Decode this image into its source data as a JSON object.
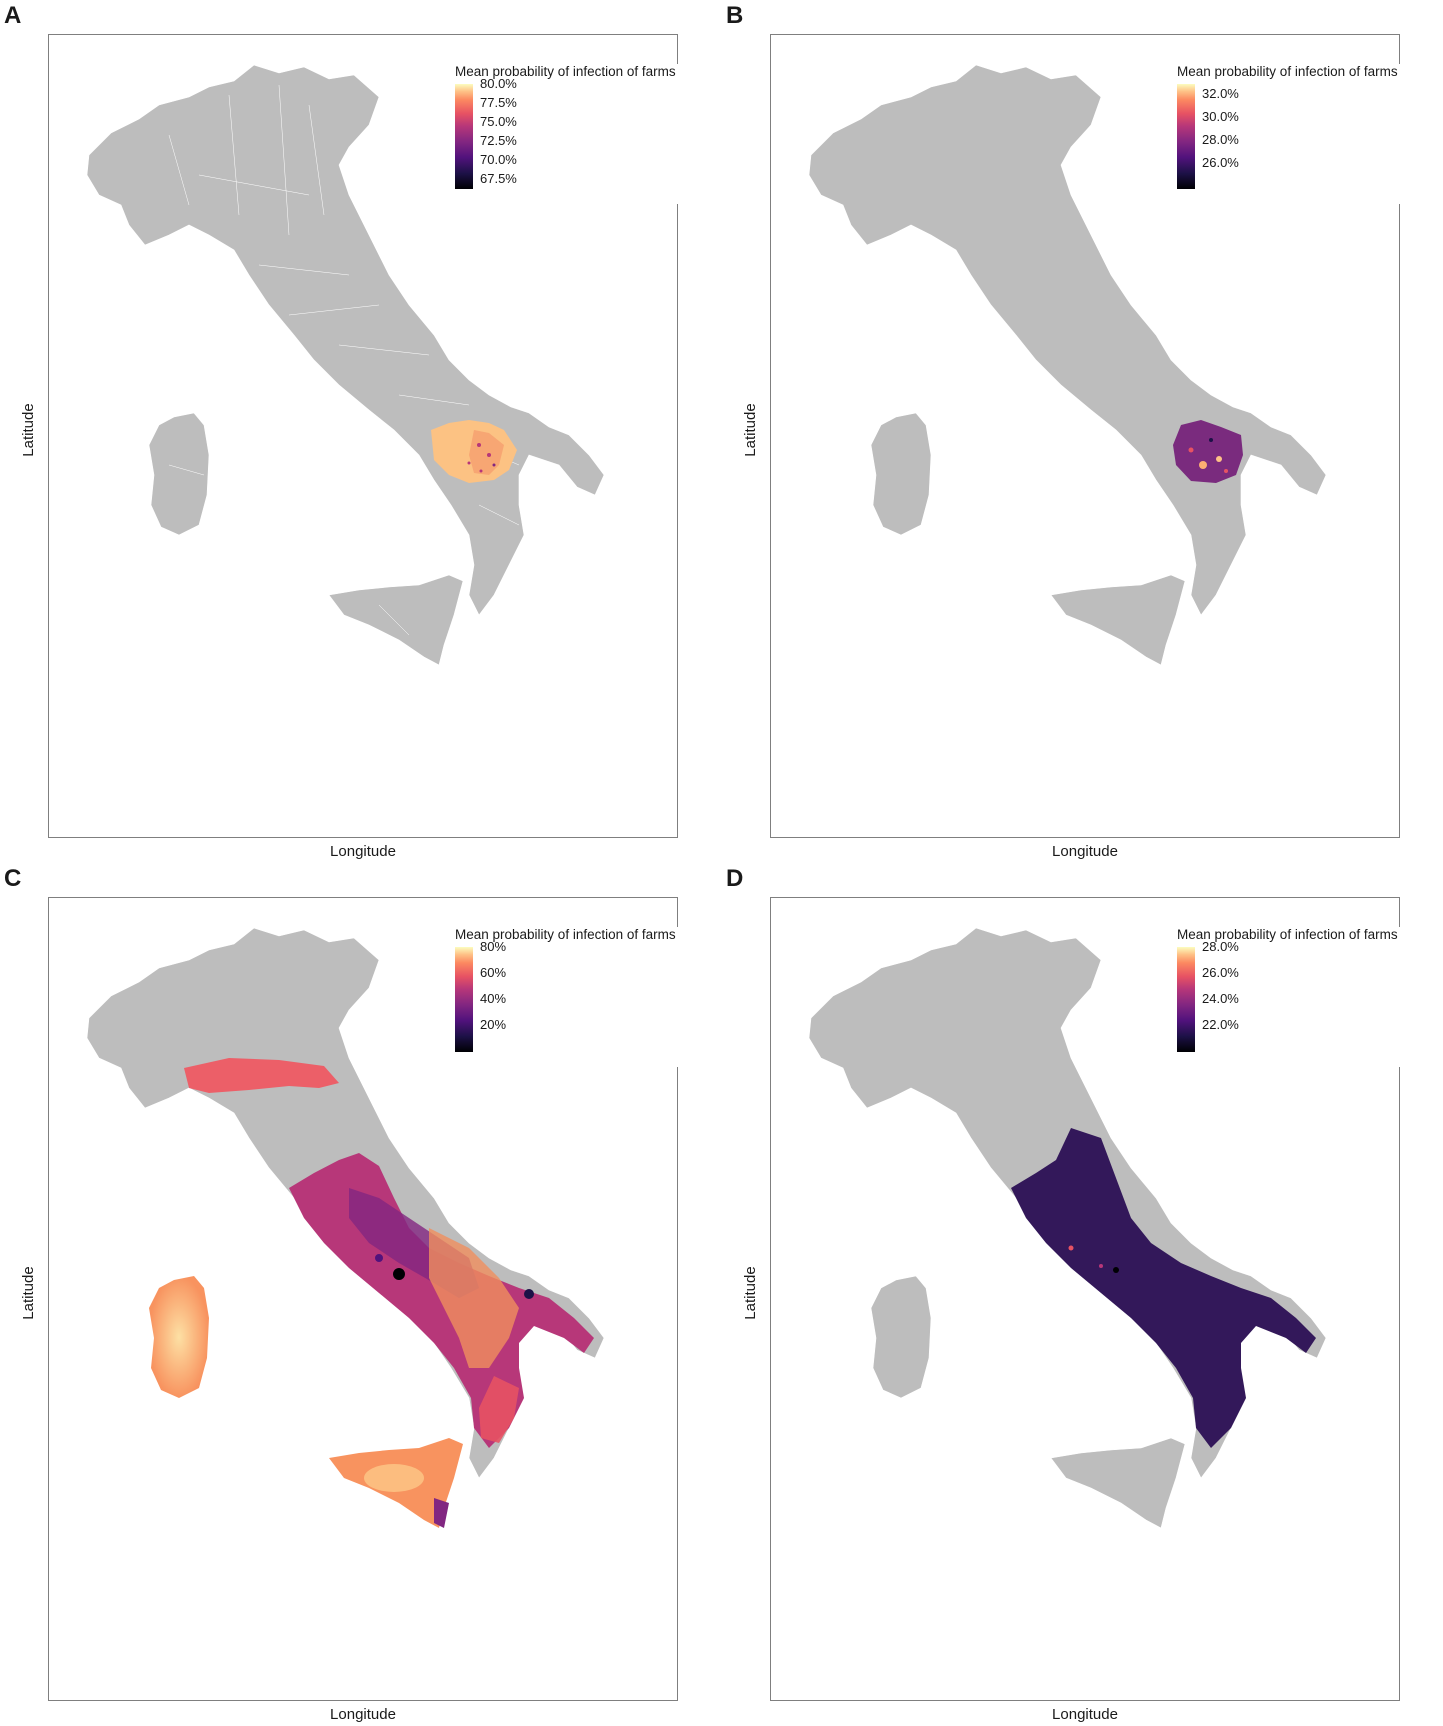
{
  "panels": [
    {
      "letter": "A",
      "xlabel": "Longitude",
      "ylabel": "Latitude",
      "legend_title": "Mean probability of infection of farms",
      "legend_labels": [
        "80.0%",
        "77.5%",
        "75.0%",
        "72.5%",
        "70.0%",
        "67.5%"
      ],
      "highlight_region": "Basilicata",
      "dominant_color": "#fdc487"
    },
    {
      "letter": "B",
      "xlabel": "Longitude",
      "ylabel": "Latitude",
      "legend_title": "Mean probability of infection of farms",
      "legend_labels": [
        "32.0%",
        "30.0%",
        "28.0%",
        "26.0%"
      ],
      "highlight_region": "Basilicata",
      "dominant_color": "#7a2b7e"
    },
    {
      "letter": "C",
      "xlabel": "Longitude",
      "ylabel": "Latitude",
      "legend_title": "Mean probability of infection of farms",
      "legend_labels": [
        "80%",
        "60%",
        "40%",
        "20%"
      ],
      "highlight_region": "Emilia-Romagna, central-southern Italy, Sardinia, Sicily",
      "dominant_color": "#e8576a"
    },
    {
      "letter": "D",
      "xlabel": "Longitude",
      "ylabel": "Latitude",
      "legend_title": "Mean probability of infection of farms",
      "legend_labels": [
        "28.0%",
        "26.0%",
        "24.0%",
        "22.0%"
      ],
      "highlight_region": "Central-southern Italy",
      "dominant_color": "#33185a"
    }
  ],
  "colors": {
    "land": "#bdbdbd",
    "border": "#ffffff",
    "magma_low": "#000004",
    "magma_mid": "#b5367a",
    "magma_high": "#fcfdbf"
  }
}
